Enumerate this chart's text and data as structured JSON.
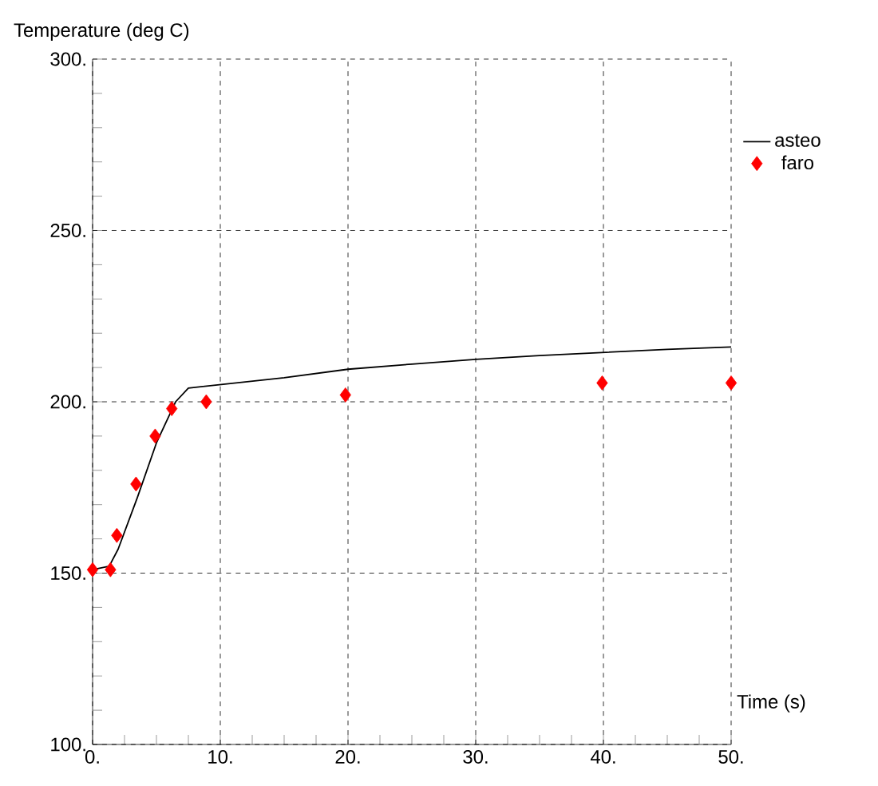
{
  "chart_data": {
    "type": "line",
    "xlabel": "Time (s)",
    "ylabel": "Temperature (deg C)",
    "xlim": [
      0,
      50
    ],
    "ylim": [
      100,
      300
    ],
    "xticks": [
      {
        "value": 0,
        "label": "0."
      },
      {
        "value": 10,
        "label": "10."
      },
      {
        "value": 20,
        "label": "20."
      },
      {
        "value": 30,
        "label": "30."
      },
      {
        "value": 40,
        "label": "40."
      },
      {
        "value": 50,
        "label": "50."
      }
    ],
    "yticks": [
      {
        "value": 100,
        "label": "100."
      },
      {
        "value": 150,
        "label": "150."
      },
      {
        "value": 200,
        "label": "200."
      },
      {
        "value": 250,
        "label": "250."
      },
      {
        "value": 300,
        "label": "300."
      }
    ],
    "grid": true,
    "legend": "right",
    "series": [
      {
        "name": "asteo",
        "color": "#000000",
        "marker": "none",
        "x": [
          0,
          1.3,
          2,
          3.5,
          5,
          6.5,
          7.5,
          10,
          15,
          20,
          25,
          30,
          35,
          40,
          45,
          50
        ],
        "values": [
          151,
          152,
          157,
          172,
          188,
          200,
          204,
          205,
          207,
          209.5,
          211,
          212.4,
          213.5,
          214.4,
          215.3,
          216
        ]
      },
      {
        "name": "faro",
        "type": "scatter",
        "color": "#ff0000",
        "marker": "diamond",
        "x": [
          0,
          1.4,
          1.9,
          3.4,
          4.9,
          6.2,
          8.9,
          19.8,
          39.9,
          50
        ],
        "values": [
          151,
          151,
          161,
          176,
          190,
          198,
          200,
          202,
          205.5,
          205.5
        ]
      }
    ]
  }
}
